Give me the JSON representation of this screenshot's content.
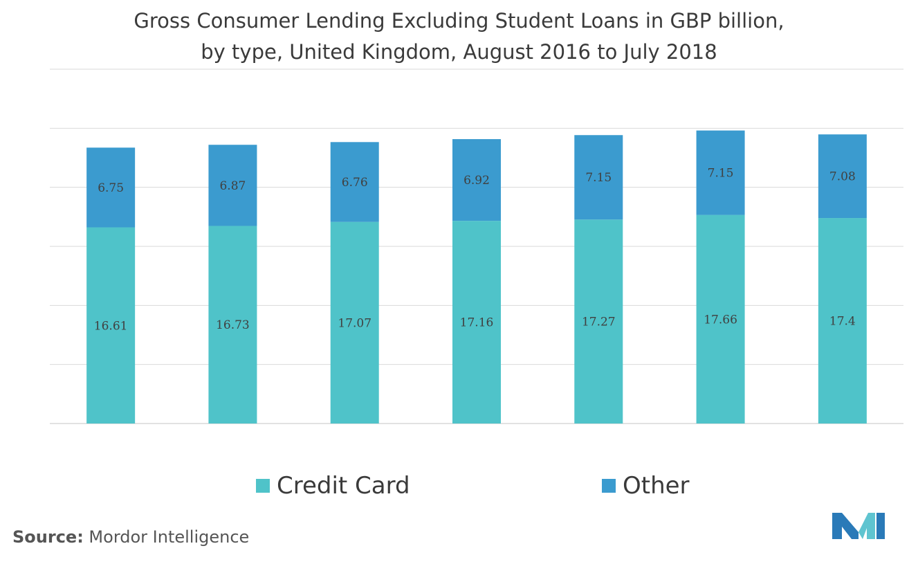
{
  "title": {
    "line1": "Gross Consumer Lending Excluding Student Loans in GBP billion,",
    "line2": "by type, United Kingdom, August 2016 to July 2018"
  },
  "colors": {
    "credit_card": "#4fc3c9",
    "other": "#3b9bcf",
    "grid": "#d9d9d9",
    "logo_dark": "#2a7ab8",
    "logo_light": "#5fc4d0"
  },
  "chart_data": {
    "type": "bar",
    "stacked": true,
    "categories": [
      "",
      "",
      "",
      "",
      "",
      "",
      ""
    ],
    "series": [
      {
        "name": "Credit Card",
        "values": [
          16.61,
          16.73,
          17.07,
          17.16,
          17.27,
          17.66,
          17.4
        ]
      },
      {
        "name": "Other",
        "values": [
          6.75,
          6.87,
          6.76,
          6.92,
          7.15,
          7.15,
          7.08
        ]
      }
    ],
    "ylim": [
      0,
      30
    ],
    "gridlines": [
      0,
      5,
      10,
      15,
      20,
      25,
      30
    ],
    "grid": true,
    "legend": "bottom",
    "data_labels": true
  },
  "legend": {
    "items": [
      {
        "label": "Credit Card"
      },
      {
        "label": "Other"
      }
    ]
  },
  "source": {
    "label": "Source:",
    "text": " Mordor Intelligence"
  },
  "logo": {
    "icon": "mordor-intelligence-logo"
  }
}
